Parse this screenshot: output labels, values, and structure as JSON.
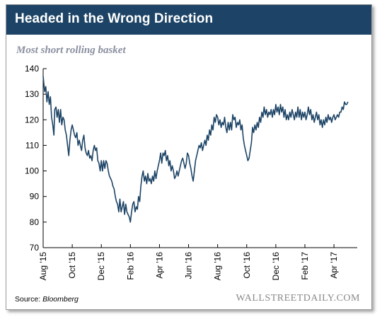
{
  "title": "Headed in the Wrong Direction",
  "subtitle": "Most short rolling basket",
  "source_label": "Source:",
  "source_value": "Bloomberg",
  "brand": "WALLSTREETDAILY.COM",
  "colors": {
    "header": "#1d4466",
    "line": "#1d4466"
  },
  "chart_data": {
    "type": "line",
    "title": "Headed in the Wrong Direction",
    "subtitle": "Most short rolling basket",
    "xlabel": "",
    "ylabel": "",
    "ylim": [
      70,
      140
    ],
    "yticks": [
      70,
      80,
      90,
      100,
      110,
      120,
      130,
      140
    ],
    "xlim": [
      0,
      21.6
    ],
    "xticks": [
      {
        "label": "Aug '15",
        "x": 0
      },
      {
        "label": "Oct '15",
        "x": 2
      },
      {
        "label": "Dec '15",
        "x": 4
      },
      {
        "label": "Feb '16",
        "x": 6
      },
      {
        "label": "Apr '16",
        "x": 8
      },
      {
        "label": "Jun '16",
        "x": 10
      },
      {
        "label": "Aug '16",
        "x": 12
      },
      {
        "label": "Oct '16",
        "x": 14
      },
      {
        "label": "Dec '16",
        "x": 16
      },
      {
        "label": "Feb '17",
        "x": 18
      },
      {
        "label": "Apr '17",
        "x": 20
      }
    ],
    "grid": false,
    "series": [
      {
        "values": [
          [
            0.0,
            137
          ],
          [
            0.1,
            131
          ],
          [
            0.18,
            133
          ],
          [
            0.26,
            127
          ],
          [
            0.34,
            131
          ],
          [
            0.42,
            126
          ],
          [
            0.5,
            129
          ],
          [
            0.58,
            121
          ],
          [
            0.66,
            118
          ],
          [
            0.74,
            114
          ],
          [
            0.8,
            124
          ],
          [
            0.88,
            125
          ],
          [
            0.96,
            121
          ],
          [
            1.04,
            124
          ],
          [
            1.12,
            119
          ],
          [
            1.2,
            124
          ],
          [
            1.28,
            118
          ],
          [
            1.36,
            121
          ],
          [
            1.44,
            120
          ],
          [
            1.52,
            116
          ],
          [
            1.6,
            114
          ],
          [
            1.68,
            110
          ],
          [
            1.76,
            106
          ],
          [
            1.84,
            112
          ],
          [
            1.92,
            116
          ],
          [
            2.0,
            118
          ],
          [
            2.08,
            116
          ],
          [
            2.16,
            114
          ],
          [
            2.24,
            113
          ],
          [
            2.32,
            115
          ],
          [
            2.4,
            110
          ],
          [
            2.48,
            112
          ],
          [
            2.56,
            110
          ],
          [
            2.64,
            108
          ],
          [
            2.72,
            112
          ],
          [
            2.8,
            114
          ],
          [
            2.88,
            109
          ],
          [
            2.96,
            107
          ],
          [
            3.04,
            106
          ],
          [
            3.12,
            108
          ],
          [
            3.2,
            105
          ],
          [
            3.28,
            106
          ],
          [
            3.36,
            104
          ],
          [
            3.44,
            108
          ],
          [
            3.52,
            110
          ],
          [
            3.6,
            108
          ],
          [
            3.68,
            109
          ],
          [
            3.76,
            104
          ],
          [
            3.84,
            103
          ],
          [
            3.92,
            100
          ],
          [
            4.0,
            104
          ],
          [
            4.08,
            100
          ],
          [
            4.16,
            104
          ],
          [
            4.24,
            101
          ],
          [
            4.32,
            104
          ],
          [
            4.4,
            103
          ],
          [
            4.48,
            100
          ],
          [
            4.56,
            98
          ],
          [
            4.64,
            97
          ],
          [
            4.72,
            96
          ],
          [
            4.8,
            94
          ],
          [
            4.88,
            93
          ],
          [
            4.96,
            90
          ],
          [
            5.04,
            88
          ],
          [
            5.12,
            87
          ],
          [
            5.2,
            84
          ],
          [
            5.28,
            89
          ],
          [
            5.36,
            84
          ],
          [
            5.44,
            86
          ],
          [
            5.52,
            88
          ],
          [
            5.6,
            83
          ],
          [
            5.68,
            87
          ],
          [
            5.76,
            84
          ],
          [
            5.84,
            83
          ],
          [
            5.92,
            82
          ],
          [
            6.0,
            80
          ],
          [
            6.08,
            84
          ],
          [
            6.16,
            87
          ],
          [
            6.24,
            88
          ],
          [
            6.32,
            84
          ],
          [
            6.4,
            86
          ],
          [
            6.48,
            85
          ],
          [
            6.56,
            90
          ],
          [
            6.64,
            88
          ],
          [
            6.72,
            94
          ],
          [
            6.8,
            98
          ],
          [
            6.88,
            100
          ],
          [
            6.96,
            96
          ],
          [
            7.04,
            98
          ],
          [
            7.12,
            95
          ],
          [
            7.2,
            99
          ],
          [
            7.28,
            96
          ],
          [
            7.36,
            97
          ],
          [
            7.44,
            95
          ],
          [
            7.52,
            98
          ],
          [
            7.6,
            96
          ],
          [
            7.68,
            100
          ],
          [
            7.76,
            97
          ],
          [
            7.84,
            100
          ],
          [
            7.92,
            102
          ],
          [
            8.0,
            104
          ],
          [
            8.08,
            107
          ],
          [
            8.16,
            103
          ],
          [
            8.24,
            107
          ],
          [
            8.32,
            106
          ],
          [
            8.4,
            108
          ],
          [
            8.48,
            104
          ],
          [
            8.56,
            106
          ],
          [
            8.64,
            102
          ],
          [
            8.72,
            104
          ],
          [
            8.8,
            100
          ],
          [
            8.88,
            102
          ],
          [
            8.96,
            100
          ],
          [
            9.04,
            97
          ],
          [
            9.12,
            98
          ],
          [
            9.2,
            100
          ],
          [
            9.28,
            98
          ],
          [
            9.36,
            100
          ],
          [
            9.44,
            102
          ],
          [
            9.52,
            104
          ],
          [
            9.6,
            105
          ],
          [
            9.68,
            103
          ],
          [
            9.76,
            101
          ],
          [
            9.84,
            103
          ],
          [
            9.92,
            107
          ],
          [
            10.0,
            106
          ],
          [
            10.08,
            103
          ],
          [
            10.16,
            101
          ],
          [
            10.24,
            98
          ],
          [
            10.32,
            96
          ],
          [
            10.4,
            100
          ],
          [
            10.48,
            104
          ],
          [
            10.56,
            106
          ],
          [
            10.64,
            108
          ],
          [
            10.72,
            110
          ],
          [
            10.8,
            109
          ],
          [
            10.88,
            111
          ],
          [
            10.96,
            108
          ],
          [
            11.04,
            110
          ],
          [
            11.12,
            112
          ],
          [
            11.2,
            110
          ],
          [
            11.28,
            114
          ],
          [
            11.36,
            112
          ],
          [
            11.44,
            116
          ],
          [
            11.52,
            114
          ],
          [
            11.6,
            118
          ],
          [
            11.68,
            116
          ],
          [
            11.76,
            121
          ],
          [
            11.84,
            119
          ],
          [
            11.92,
            122
          ],
          [
            12.0,
            121
          ],
          [
            12.08,
            118
          ],
          [
            12.16,
            120
          ],
          [
            12.24,
            117
          ],
          [
            12.32,
            119
          ],
          [
            12.4,
            118
          ],
          [
            12.48,
            121
          ],
          [
            12.56,
            117
          ],
          [
            12.64,
            115
          ],
          [
            12.72,
            119
          ],
          [
            12.8,
            116
          ],
          [
            12.88,
            119
          ],
          [
            12.96,
            116
          ],
          [
            13.04,
            122
          ],
          [
            13.12,
            120
          ],
          [
            13.2,
            121
          ],
          [
            13.28,
            117
          ],
          [
            13.36,
            119
          ],
          [
            13.44,
            118
          ],
          [
            13.52,
            120
          ],
          [
            13.6,
            116
          ],
          [
            13.68,
            118
          ],
          [
            13.76,
            113
          ],
          [
            13.84,
            110
          ],
          [
            13.92,
            108
          ],
          [
            14.0,
            106
          ],
          [
            14.08,
            104
          ],
          [
            14.16,
            105
          ],
          [
            14.24,
            108
          ],
          [
            14.32,
            111
          ],
          [
            14.4,
            117
          ],
          [
            14.48,
            115
          ],
          [
            14.56,
            118
          ],
          [
            14.64,
            116
          ],
          [
            14.72,
            119
          ],
          [
            14.8,
            117
          ],
          [
            14.88,
            121
          ],
          [
            14.96,
            119
          ],
          [
            15.04,
            123
          ],
          [
            15.12,
            121
          ],
          [
            15.2,
            125
          ],
          [
            15.28,
            122
          ],
          [
            15.36,
            124
          ],
          [
            15.44,
            121
          ],
          [
            15.52,
            123
          ],
          [
            15.6,
            122
          ],
          [
            15.68,
            124
          ],
          [
            15.76,
            121
          ],
          [
            15.84,
            124
          ],
          [
            15.92,
            122
          ],
          [
            16.0,
            126
          ],
          [
            16.08,
            123
          ],
          [
            16.16,
            125
          ],
          [
            16.24,
            122
          ],
          [
            16.32,
            126
          ],
          [
            16.4,
            123
          ],
          [
            16.48,
            125
          ],
          [
            16.56,
            121
          ],
          [
            16.64,
            124
          ],
          [
            16.72,
            120
          ],
          [
            16.8,
            122
          ],
          [
            16.88,
            120
          ],
          [
            16.96,
            123
          ],
          [
            17.04,
            121
          ],
          [
            17.12,
            124
          ],
          [
            17.2,
            122
          ],
          [
            17.28,
            120
          ],
          [
            17.36,
            123
          ],
          [
            17.44,
            121
          ],
          [
            17.52,
            125
          ],
          [
            17.6,
            121
          ],
          [
            17.68,
            124
          ],
          [
            17.76,
            120
          ],
          [
            17.84,
            123
          ],
          [
            17.92,
            121
          ],
          [
            18.0,
            123
          ],
          [
            18.08,
            120
          ],
          [
            18.16,
            122
          ],
          [
            18.24,
            125
          ],
          [
            18.32,
            122
          ],
          [
            18.4,
            124
          ],
          [
            18.48,
            120
          ],
          [
            18.56,
            122
          ],
          [
            18.64,
            119
          ],
          [
            18.72,
            121
          ],
          [
            18.8,
            123
          ],
          [
            18.88,
            120
          ],
          [
            18.96,
            122
          ],
          [
            19.04,
            118
          ],
          [
            19.12,
            120
          ],
          [
            19.2,
            117
          ],
          [
            19.28,
            120
          ],
          [
            19.36,
            118
          ],
          [
            19.44,
            121
          ],
          [
            19.52,
            119
          ],
          [
            19.6,
            122
          ],
          [
            19.68,
            120
          ],
          [
            19.76,
            121
          ],
          [
            19.84,
            119
          ],
          [
            19.92,
            121
          ],
          [
            20.0,
            122
          ],
          [
            20.08,
            120
          ],
          [
            20.16,
            121
          ],
          [
            20.24,
            122
          ],
          [
            20.32,
            121
          ],
          [
            20.4,
            123
          ],
          [
            20.48,
            123
          ],
          [
            20.56,
            125
          ],
          [
            20.64,
            124
          ],
          [
            20.72,
            127
          ],
          [
            20.8,
            126
          ],
          [
            20.88,
            126
          ],
          [
            20.96,
            127
          ]
        ]
      }
    ]
  }
}
